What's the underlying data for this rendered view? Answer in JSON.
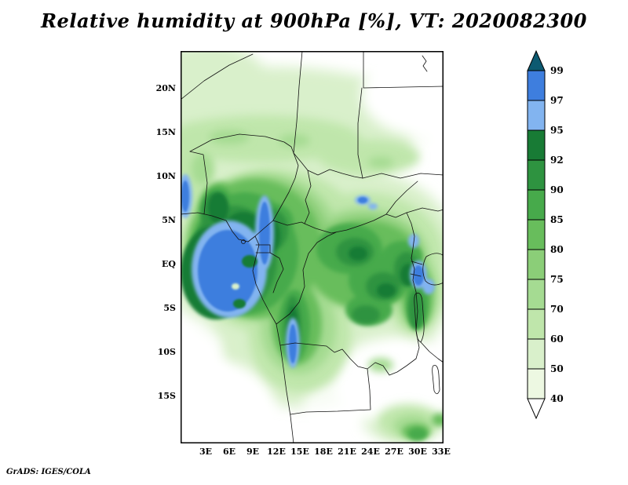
{
  "title": "Relative humidity at 900hPa [%], VT: 2020082300",
  "attribution": "GrADS: IGES/COLA",
  "axes": {
    "lat_labels": [
      "20N",
      "15N",
      "10N",
      "5N",
      "EQ",
      "5S",
      "10S",
      "15S"
    ],
    "lon_labels": [
      "3E",
      "6E",
      "9E",
      "12E",
      "15E",
      "18E",
      "21E",
      "24E",
      "27E",
      "30E",
      "33E"
    ]
  },
  "colorbar": {
    "ticks": [
      "99",
      "97",
      "95",
      "92",
      "90",
      "85",
      "80",
      "75",
      "70",
      "60",
      "50",
      "40"
    ]
  },
  "palette": {
    ">99": "#0d5a71",
    "99": "#0d5a71",
    "97": "#3e7ede",
    "95": "#82b4f0",
    "92": "#187b35",
    "90": "#2e9340",
    "85": "#47aa4b",
    "80": "#68bd5c",
    "75": "#8bce78",
    "70": "#a5db92",
    "60": "#bfe6ab",
    "50": "#d9f0cb",
    "40": "#edf8e2",
    "<40": "#ffffff",
    "white": "#ffffff"
  },
  "chart_data": {
    "type": "heatmap",
    "title": "Relative humidity at 900hPa [%], VT: 2020082300",
    "variable": "Relative humidity",
    "pressure_level": "900hPa",
    "units": "%",
    "valid_time": "2020082300",
    "x_ticks": [
      "3E",
      "6E",
      "9E",
      "12E",
      "15E",
      "18E",
      "21E",
      "24E",
      "27E",
      "30E",
      "33E"
    ],
    "y_ticks": [
      "20N",
      "15N",
      "10N",
      "5N",
      "EQ",
      "5S",
      "10S",
      "15S"
    ],
    "x_range_deg_east": [
      0,
      33.5
    ],
    "y_range_deg": [
      -20.6,
      24
    ],
    "contour_levels": [
      40,
      50,
      60,
      70,
      75,
      80,
      85,
      90,
      92,
      95,
      97,
      99
    ],
    "legend_position": "right",
    "grid": false,
    "features": [
      "Large area exceeding 95-99% (blue) over the Gulf of Guinea, Cameroon and Gabon coast, roughly 5E-14E and 8N-7S",
      "Narrow blue >95% streak along ~12E from 7N to the Equator and another along ~14E from 7S to 11S",
      "Small >95% patches near 23E/7N and around the East African lakes near 30E between the Equator and 4S",
      "Broad 85-95% (dark green) across the Congo basin equatorial band from 2E to 31E between 8N and 4S",
      "Sahel band near 13N-17N with 50-75% (light-medium green) fading to below 40-50% (white) toward the north and northeast (Sudan/Egypt)",
      "Dry air below 40-60% (white/very pale) over the southeast (Tanzania/Zambia) and the south-west corner",
      "Moderate 60-85% column along 13E-16E extending south to about 12S"
    ]
  }
}
